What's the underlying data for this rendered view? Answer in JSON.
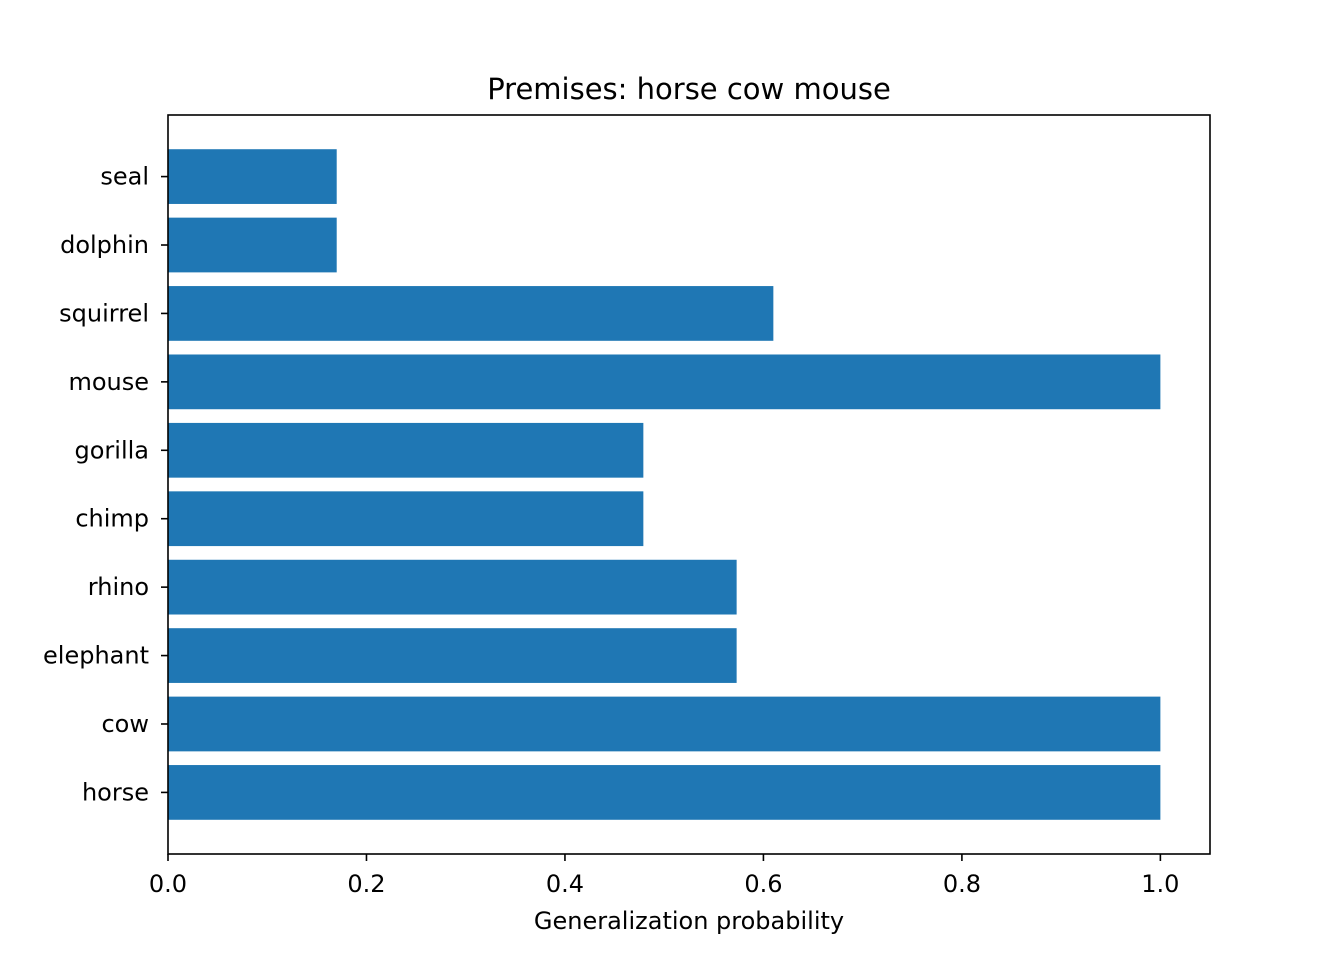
{
  "chart_data": {
    "type": "bar",
    "orientation": "horizontal",
    "title": "Premises: horse cow mouse",
    "xlabel": "Generalization probability",
    "ylabel": "",
    "xlim": [
      0,
      1.05
    ],
    "xticks": [
      0.0,
      0.2,
      0.4,
      0.6,
      0.8,
      1.0
    ],
    "xtick_labels": [
      "0.0",
      "0.2",
      "0.4",
      "0.6",
      "0.8",
      "1.0"
    ],
    "categories": [
      "horse",
      "cow",
      "elephant",
      "rhino",
      "chimp",
      "gorilla",
      "mouse",
      "squirrel",
      "dolphin",
      "seal"
    ],
    "values": [
      1.0,
      1.0,
      0.573,
      0.573,
      0.479,
      0.479,
      1.0,
      0.61,
      0.17,
      0.17
    ],
    "bar_color": "#1f77b4",
    "grid": false,
    "legend": "none"
  }
}
